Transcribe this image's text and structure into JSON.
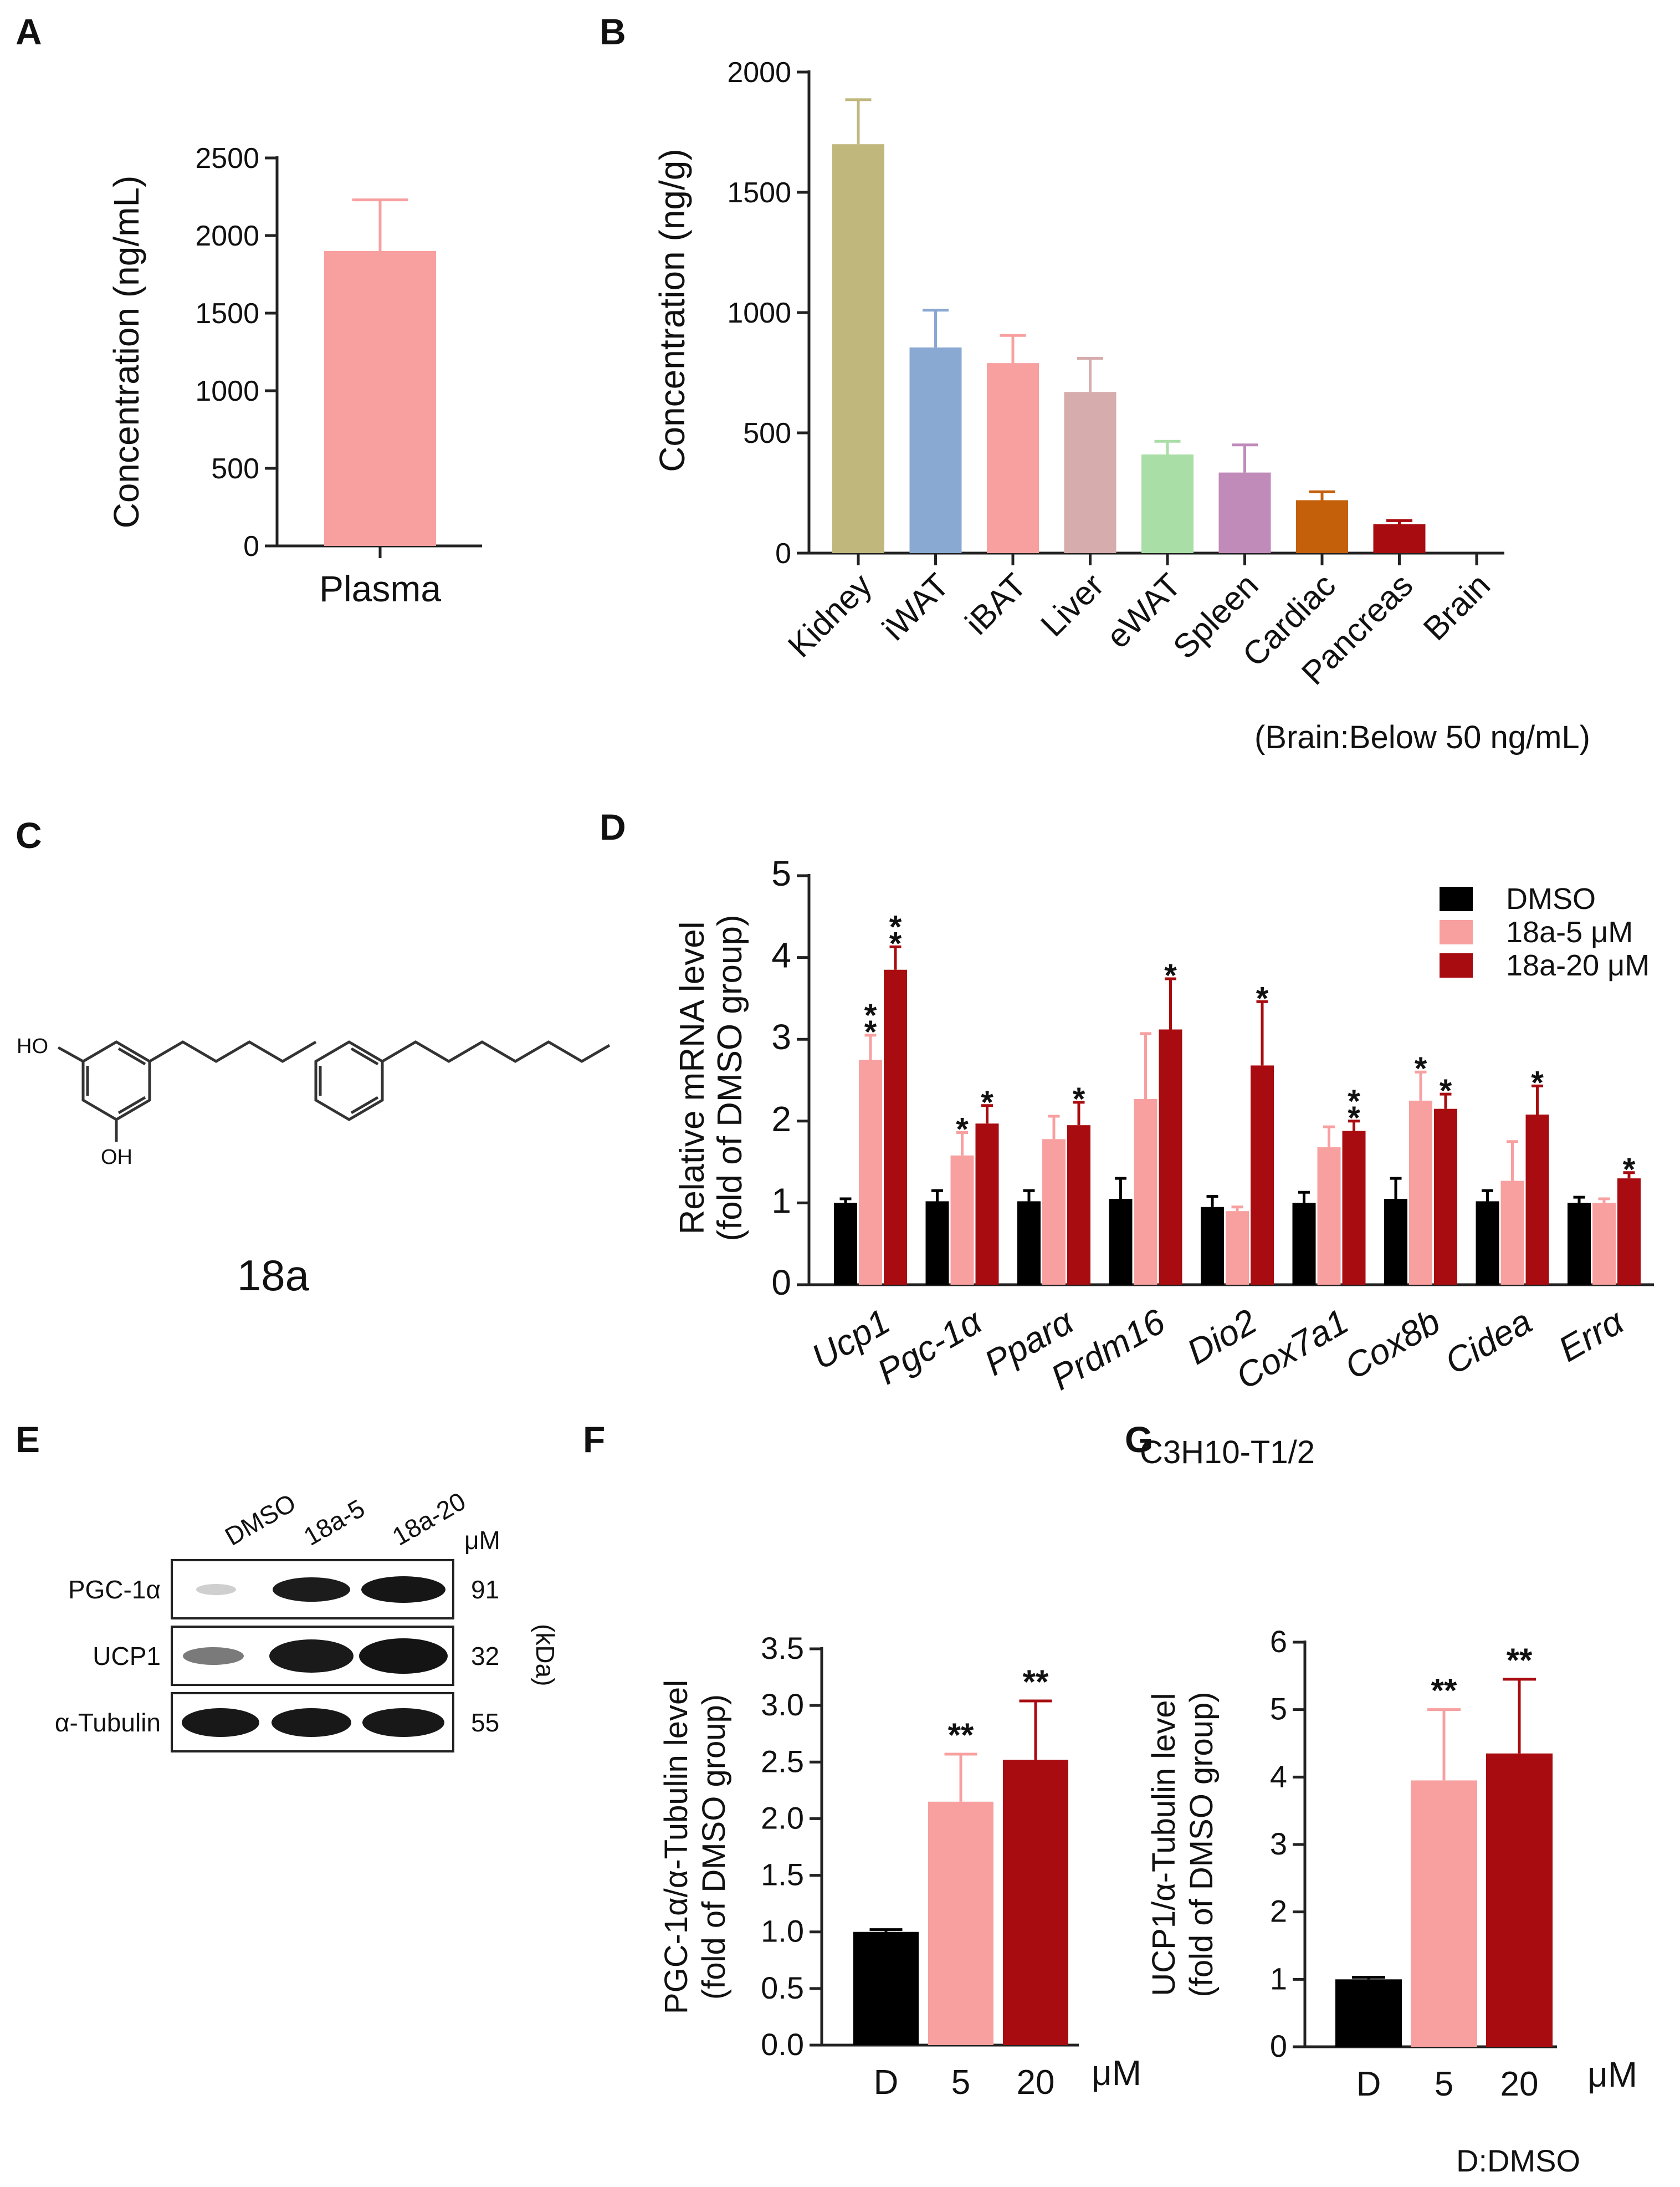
{
  "panels": {
    "A": {
      "letter": "A",
      "chart_data": {
        "type": "bar",
        "categories": [
          "Plasma"
        ],
        "values": [
          1900
        ],
        "errors": [
          330
        ],
        "ylabel": "Concentration (ng/mL)",
        "ylim": [
          0,
          2500
        ],
        "yticks": [
          0,
          500,
          1000,
          1500,
          2000,
          2500
        ],
        "colors": [
          "#f8a0a0"
        ]
      }
    },
    "B": {
      "letter": "B",
      "chart_data": {
        "type": "bar",
        "categories": [
          "Kidney",
          "iWAT",
          "iBAT",
          "Liver",
          "eWAT",
          "Spleen",
          "Cardiac",
          "Pancreas",
          "Brain"
        ],
        "values": [
          1700,
          855,
          790,
          670,
          410,
          335,
          220,
          120,
          0
        ],
        "errors": [
          185,
          155,
          115,
          140,
          55,
          115,
          35,
          15,
          0
        ],
        "colors": [
          "#bfb77c",
          "#89a9d2",
          "#f8a0a0",
          "#d6acac",
          "#a9dea6",
          "#c08ab9",
          "#c45f0a",
          "#a80c10",
          "#ffffff"
        ],
        "ylabel": "Concentration (ng/g)",
        "ylim": [
          0,
          2000
        ],
        "yticks": [
          0,
          500,
          1000,
          1500,
          2000
        ],
        "note": "(Brain:Below 50 ng/mL)"
      }
    },
    "C": {
      "letter": "C",
      "compound": "18a",
      "label_ho": "HO",
      "label_oh": "OH"
    },
    "D": {
      "letter": "D",
      "chart_data": {
        "type": "bar",
        "categories": [
          "Ucp1",
          "Pgc-1α",
          "Pparα",
          "Prdm16",
          "Dio2",
          "Cox7a1",
          "Cox8b",
          "Cidea",
          "Errα"
        ],
        "series": [
          {
            "name": "DMSO",
            "color": "#000000",
            "values": [
              1.0,
              1.02,
              1.02,
              1.05,
              0.95,
              1.0,
              1.05,
              1.02,
              1.0
            ],
            "errors": [
              0.05,
              0.13,
              0.13,
              0.25,
              0.13,
              0.13,
              0.25,
              0.13,
              0.07
            ],
            "stars": [
              "",
              "",
              "",
              "",
              "",
              "",
              "",
              "",
              ""
            ]
          },
          {
            "name": "18a-5 μM",
            "color": "#f8a0a0",
            "values": [
              2.75,
              1.58,
              1.78,
              2.27,
              0.9,
              1.68,
              2.25,
              1.27,
              1.0
            ],
            "errors": [
              0.3,
              0.28,
              0.28,
              0.8,
              0.05,
              0.25,
              0.35,
              0.48,
              0.05
            ],
            "stars": [
              "**",
              "*",
              "",
              "",
              "",
              "",
              "*",
              "",
              ""
            ]
          },
          {
            "name": "18a-20 μM",
            "color": "#a80c10",
            "values": [
              3.85,
              1.97,
              1.95,
              3.12,
              2.68,
              1.88,
              2.15,
              2.08,
              1.3
            ],
            "errors": [
              0.28,
              0.22,
              0.28,
              0.62,
              0.78,
              0.12,
              0.18,
              0.35,
              0.07
            ],
            "stars": [
              "**",
              "*",
              "*",
              "*",
              "*",
              "**",
              "*",
              "*",
              "*"
            ]
          }
        ],
        "ylabel_line1": "Relative mRNA level",
        "ylabel_line2": "(fold of DMSO group)",
        "xlabel": "C3H10-T1/2",
        "ylim": [
          0,
          5
        ],
        "yticks": [
          0,
          1,
          2,
          3,
          4,
          5
        ]
      }
    },
    "E": {
      "letter": "E",
      "lanes": [
        "DMSO",
        "18a-5",
        "18a-20"
      ],
      "unit": "μM",
      "rows": [
        {
          "label": "PGC-1α",
          "kda": "91"
        },
        {
          "label": "UCP1",
          "kda": "32"
        },
        {
          "label": "α-Tubulin",
          "kda": "55"
        }
      ],
      "kda_label": "(kDa)"
    },
    "F": {
      "letter": "F",
      "chart_data": {
        "type": "bar",
        "categories": [
          "D",
          "5",
          "20"
        ],
        "values": [
          1.0,
          2.15,
          2.52
        ],
        "errors": [
          0.02,
          0.42,
          0.52
        ],
        "stars": [
          "",
          "**",
          "**"
        ],
        "colors": [
          "#000000",
          "#f8a0a0",
          "#a80c10"
        ],
        "ylabel_line1": "PGC-1α/α-Tubulin level",
        "ylabel_line2": "(fold of DMSO group)",
        "xunit": "μM",
        "ylim": [
          0,
          3.5
        ],
        "yticks": [
          0.0,
          0.5,
          1.0,
          1.5,
          2.0,
          2.5,
          3.0,
          3.5
        ]
      }
    },
    "G": {
      "letter": "G",
      "chart_data": {
        "type": "bar",
        "categories": [
          "D",
          "5",
          "20"
        ],
        "values": [
          1.0,
          3.95,
          4.35
        ],
        "errors": [
          0.03,
          1.05,
          1.1
        ],
        "stars": [
          "",
          "**",
          "**"
        ],
        "colors": [
          "#000000",
          "#f8a0a0",
          "#a80c10"
        ],
        "ylabel_line1": "UCP1/α-Tubulin level",
        "ylabel_line2": "(fold of DMSO group)",
        "xunit": "μM",
        "ylim": [
          0,
          6
        ],
        "yticks": [
          0,
          1,
          2,
          3,
          4,
          5,
          6
        ]
      },
      "footnote": "D:DMSO"
    }
  }
}
